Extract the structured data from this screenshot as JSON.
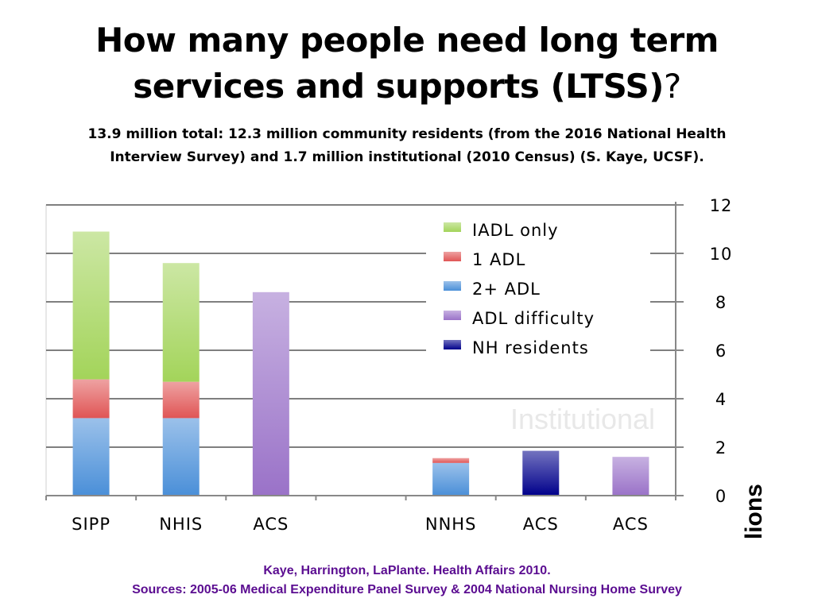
{
  "slide": {
    "title_line1": "How many people need long term",
    "title_line2": "services and supports (LTSS)",
    "title_q": "?",
    "subtitle_line1": "13.9 million total:  12.3 million community residents (from the 2016 National Health",
    "subtitle_line2": "Interview Survey) and 1.7 million institutional (2010 Census) (S. Kaye, UCSF).",
    "footer_line1": "Kaye, Harrington, LaPlante. Health Affairs 2010.",
    "footer_line2": "Sources:  2005-06 Medical Expenditure Panel Survey & 2004 National Nursing Home Survey"
  },
  "chart_data": {
    "type": "bar",
    "stacked": true,
    "categories": [
      "SIPP",
      "NHIS",
      "ACS",
      "",
      "NNHS",
      "ACS",
      "ACS"
    ],
    "series": [
      {
        "name": "2+ ADL",
        "color": "#4a8fd8",
        "values": [
          3.2,
          3.2,
          0,
          0,
          1.35,
          0,
          0
        ]
      },
      {
        "name": "1 ADL",
        "color": "#e05555",
        "values": [
          1.6,
          1.5,
          0,
          0,
          0.2,
          0,
          0
        ]
      },
      {
        "name": "IADL only",
        "color": "#a3d45a",
        "values": [
          6.1,
          4.9,
          0,
          0,
          0,
          0,
          0
        ]
      },
      {
        "name": "ADL difficulty",
        "color": "#9a72c8",
        "values": [
          0,
          0,
          8.4,
          0,
          0,
          0,
          1.6
        ]
      },
      {
        "name": "NH residents",
        "color": "#00008b",
        "values": [
          0,
          0,
          0,
          0,
          0,
          1.85,
          0
        ]
      }
    ],
    "legend_order": [
      "IADL only",
      "1 ADL",
      "2+ ADL",
      "ADL difficulty",
      "NH residents"
    ],
    "legend_position": "top-right",
    "ylabel": "Millions",
    "yaxis_side": "right",
    "ylim": [
      0,
      12
    ],
    "yticks": [
      0,
      2,
      4,
      6,
      8,
      10,
      12
    ],
    "grid": true,
    "annotation": "Institutional"
  }
}
